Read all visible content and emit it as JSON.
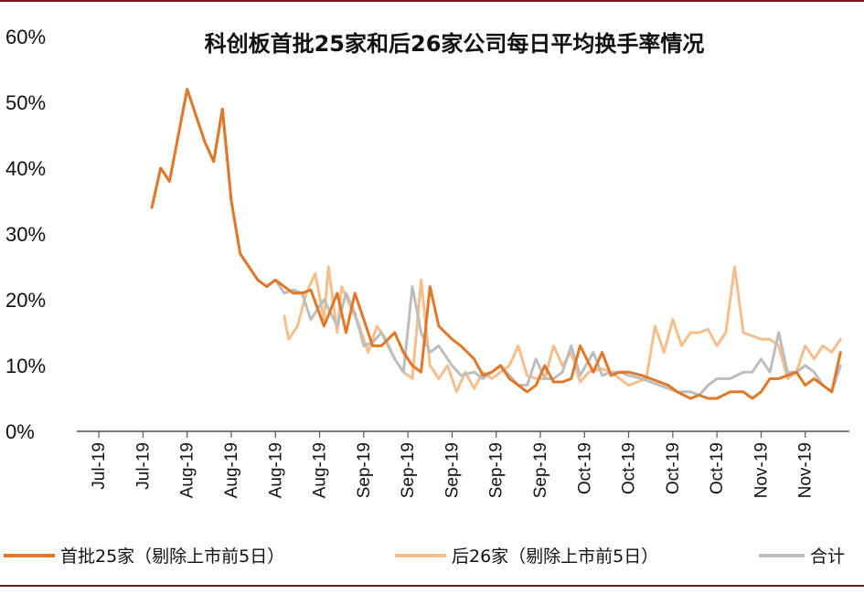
{
  "chart_data": {
    "type": "line",
    "title": "科创板首批25家和后26家公司每日平均换手率情况",
    "xlabel": "",
    "ylabel": "",
    "ylim": [
      0,
      60
    ],
    "y_unit": "%",
    "yticks": [
      "0%",
      "10%",
      "20%",
      "30%",
      "40%",
      "50%",
      "60%"
    ],
    "x_tick_labels": [
      "Jul-19",
      "Jul-19",
      "Aug-19",
      "Aug-19",
      "Aug-19",
      "Aug-19",
      "Sep-19",
      "Sep-19",
      "Sep-19",
      "Sep-19",
      "Sep-19",
      "Oct-19",
      "Oct-19",
      "Oct-19",
      "Oct-19",
      "Nov-19",
      "Nov-19"
    ],
    "x_tick_dates": [
      "2019-07-12",
      "2019-07-22",
      "2019-08-01",
      "2019-08-11",
      "2019-08-21",
      "2019-08-31",
      "2019-09-10",
      "2019-09-20",
      "2019-09-30",
      "2019-10-10",
      "2019-10-20",
      "2019-10-30",
      "2019-11-09",
      "2019-11-19",
      "2019-11-29",
      "2019-12-09",
      "2019-12-19"
    ],
    "grid": false,
    "legend_position": "bottom",
    "series": [
      {
        "name": "首批25家（剔除上市前5日）",
        "color": "#E07828",
        "x": [
          "2019-07-24",
          "2019-07-26",
          "2019-07-28",
          "2019-08-01",
          "2019-08-05",
          "2019-08-07",
          "2019-08-09",
          "2019-08-11",
          "2019-08-13",
          "2019-08-15",
          "2019-08-17",
          "2019-08-19",
          "2019-08-21",
          "2019-08-23",
          "2019-08-25",
          "2019-08-27",
          "2019-08-29",
          "2019-09-01",
          "2019-09-04",
          "2019-09-06",
          "2019-09-08",
          "2019-09-10",
          "2019-09-12",
          "2019-09-14",
          "2019-09-17",
          "2019-09-19",
          "2019-09-21",
          "2019-09-23",
          "2019-09-25",
          "2019-09-27",
          "2019-09-30",
          "2019-10-02",
          "2019-10-05",
          "2019-10-07",
          "2019-10-09",
          "2019-10-11",
          "2019-10-13",
          "2019-10-15",
          "2019-10-17",
          "2019-10-19",
          "2019-10-21",
          "2019-10-23",
          "2019-10-25",
          "2019-10-27",
          "2019-10-29",
          "2019-11-01",
          "2019-11-03",
          "2019-11-05",
          "2019-11-07",
          "2019-11-09",
          "2019-11-12",
          "2019-11-14",
          "2019-11-16",
          "2019-11-18",
          "2019-11-20",
          "2019-11-23",
          "2019-11-25",
          "2019-11-27",
          "2019-11-29",
          "2019-12-02",
          "2019-12-05",
          "2019-12-07",
          "2019-12-09",
          "2019-12-11",
          "2019-12-13",
          "2019-12-15",
          "2019-12-17",
          "2019-12-19",
          "2019-12-21",
          "2019-12-23",
          "2019-12-25",
          "2019-12-27"
        ],
        "values": [
          34,
          40,
          38,
          52,
          44,
          41,
          49,
          35,
          27,
          25,
          23,
          22,
          23,
          22,
          21,
          21,
          21.5,
          16,
          21,
          15,
          21,
          17,
          13,
          13,
          15,
          12,
          10,
          9,
          22,
          16,
          14,
          13,
          11,
          8.5,
          9,
          10,
          8,
          7,
          6,
          7,
          10,
          7.5,
          7.5,
          8,
          13,
          9,
          12,
          8.5,
          9,
          9,
          8.5,
          8,
          7.5,
          7,
          6,
          5,
          5.5,
          5,
          5,
          6,
          6,
          5,
          6,
          8,
          8,
          8.5,
          9,
          7,
          8,
          7,
          6,
          12
        ]
      },
      {
        "name": "后26家（剔除上市前5日）",
        "color": "#F5BE8C",
        "x": [
          "2019-08-23",
          "2019-08-24",
          "2019-08-26",
          "2019-08-28",
          "2019-08-30",
          "2019-09-01",
          "2019-09-02",
          "2019-09-04",
          "2019-09-05",
          "2019-09-07",
          "2019-09-09",
          "2019-09-11",
          "2019-09-13",
          "2019-09-15",
          "2019-09-17",
          "2019-09-19",
          "2019-09-21",
          "2019-09-23",
          "2019-09-25",
          "2019-09-27",
          "2019-09-29",
          "2019-10-01",
          "2019-10-03",
          "2019-10-05",
          "2019-10-07",
          "2019-10-09",
          "2019-10-11",
          "2019-10-13",
          "2019-10-15",
          "2019-10-17",
          "2019-10-19",
          "2019-10-21",
          "2019-10-23",
          "2019-10-25",
          "2019-10-27",
          "2019-10-29",
          "2019-10-31",
          "2019-11-03",
          "2019-11-05",
          "2019-11-07",
          "2019-11-09",
          "2019-11-11",
          "2019-11-13",
          "2019-11-15",
          "2019-11-17",
          "2019-11-19",
          "2019-11-21",
          "2019-11-23",
          "2019-11-25",
          "2019-11-27",
          "2019-11-29",
          "2019-12-01",
          "2019-12-03",
          "2019-12-05",
          "2019-12-07",
          "2019-12-09",
          "2019-12-11",
          "2019-12-13",
          "2019-12-15",
          "2019-12-17",
          "2019-12-19",
          "2019-12-21",
          "2019-12-23",
          "2019-12-25",
          "2019-12-27"
        ],
        "values": [
          17.5,
          14,
          16,
          21,
          24,
          17,
          25,
          15,
          22,
          19,
          16,
          12,
          16,
          14,
          11,
          9,
          8,
          23,
          10,
          8,
          10,
          6,
          9,
          6.5,
          9,
          8,
          9,
          10,
          13,
          8.5,
          8,
          8,
          13,
          10,
          12,
          7.5,
          9,
          9.5,
          9,
          8,
          7,
          7.5,
          8,
          16,
          12,
          17,
          13,
          15,
          15,
          15.5,
          13,
          15,
          25,
          15,
          14.5,
          14,
          14,
          13,
          8,
          9,
          13,
          11,
          13,
          12,
          14
        ]
      },
      {
        "name": "合计",
        "color": "#BDBDBD",
        "x": [
          "2019-07-24",
          "2019-07-26",
          "2019-07-28",
          "2019-08-01",
          "2019-08-05",
          "2019-08-07",
          "2019-08-09",
          "2019-08-11",
          "2019-08-13",
          "2019-08-15",
          "2019-08-17",
          "2019-08-19",
          "2019-08-21",
          "2019-08-23",
          "2019-08-25",
          "2019-08-27",
          "2019-08-29",
          "2019-09-01",
          "2019-09-04",
          "2019-09-06",
          "2019-09-08",
          "2019-09-10",
          "2019-09-12",
          "2019-09-14",
          "2019-09-17",
          "2019-09-19",
          "2019-09-21",
          "2019-09-23",
          "2019-09-25",
          "2019-09-27",
          "2019-09-30",
          "2019-10-02",
          "2019-10-05",
          "2019-10-07",
          "2019-10-09",
          "2019-10-11",
          "2019-10-13",
          "2019-10-15",
          "2019-10-17",
          "2019-10-19",
          "2019-10-21",
          "2019-10-23",
          "2019-10-25",
          "2019-10-27",
          "2019-10-29",
          "2019-11-01",
          "2019-11-03",
          "2019-11-05",
          "2019-11-07",
          "2019-11-09",
          "2019-11-12",
          "2019-11-14",
          "2019-11-16",
          "2019-11-18",
          "2019-11-20",
          "2019-11-23",
          "2019-11-25",
          "2019-11-27",
          "2019-11-29",
          "2019-12-02",
          "2019-12-05",
          "2019-12-07",
          "2019-12-09",
          "2019-12-11",
          "2019-12-13",
          "2019-12-15",
          "2019-12-17",
          "2019-12-19",
          "2019-12-21",
          "2019-12-23",
          "2019-12-25",
          "2019-12-27"
        ],
        "values": [
          34,
          40,
          38,
          52,
          44,
          41,
          49,
          35,
          27,
          25,
          23,
          22,
          23,
          21,
          21.5,
          21,
          17,
          20,
          16,
          21,
          18,
          13,
          13.5,
          15,
          11,
          9,
          22,
          15,
          12,
          13,
          10,
          8.5,
          9,
          8,
          9,
          10,
          8.5,
          7,
          7,
          11,
          8,
          8,
          9,
          13,
          8.5,
          12,
          8.5,
          9,
          9,
          8.5,
          8,
          7.5,
          7,
          6.5,
          6,
          6,
          5.5,
          7,
          8,
          8,
          9,
          9,
          11,
          9,
          15,
          9,
          9,
          10,
          9,
          7,
          6,
          10
        ]
      }
    ]
  }
}
